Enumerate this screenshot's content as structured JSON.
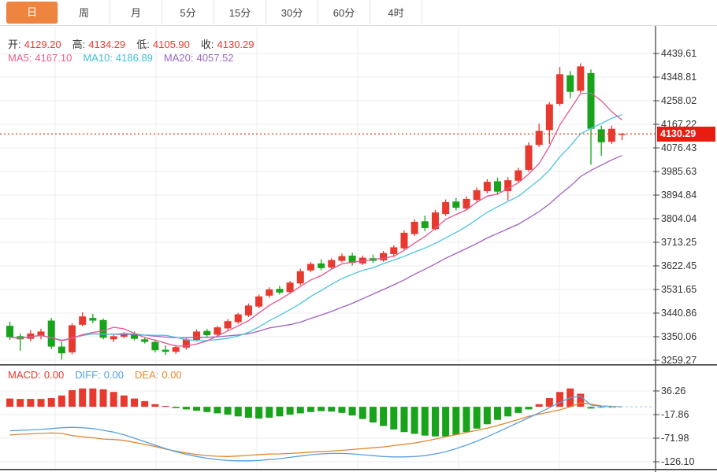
{
  "tabs": {
    "items": [
      {
        "id": "day",
        "label": "日",
        "active": true
      },
      {
        "id": "week",
        "label": "周",
        "active": false
      },
      {
        "id": "month",
        "label": "月",
        "active": false
      },
      {
        "id": "5min",
        "label": "5分",
        "active": false
      },
      {
        "id": "15min",
        "label": "15分",
        "active": false
      },
      {
        "id": "30min",
        "label": "30分",
        "active": false
      },
      {
        "id": "60min",
        "label": "60分",
        "active": false
      },
      {
        "id": "4hour",
        "label": "4时",
        "active": false
      }
    ]
  },
  "info": {
    "open_label": "开:",
    "open": "4129.20",
    "high_label": "高:",
    "high": "4134.29",
    "low_label": "低:",
    "low": "4105.90",
    "close_label": "收:",
    "close": "4130.29",
    "ma5_label": "MA5:",
    "ma5": "4167.10",
    "ma10_label": "MA10:",
    "ma10": "4186.89",
    "ma20_label": "MA20:",
    "ma20": "4057.52"
  },
  "macd_info": {
    "macd_label": "MACD:",
    "macd": "0.00",
    "diff_label": "DIFF:",
    "diff": "0.00",
    "dea_label": "DEA:",
    "dea": "0.00"
  },
  "price_tag": "4130.29",
  "colors": {
    "up": "#e8392f",
    "down": "#18a31a",
    "ma5": "#e8548f",
    "ma10": "#4cc3dc",
    "ma20": "#a05fc0",
    "diff_line": "#5aa0e0",
    "dea_line": "#e08830",
    "grid": "#ededf2",
    "axis": "#555555",
    "tick_text": "#333333",
    "price_line": "#e2502a",
    "tag_bg": "#e91c10",
    "tab_active": "#ed8440",
    "zero_ext": "#a5d5e8"
  },
  "chart_data": [
    {
      "type": "candlestick",
      "panel": "price",
      "ylim": [
        3259.27,
        4439.61
      ],
      "y_ticks": [
        4439.61,
        4348.81,
        4258.02,
        4167.22,
        4076.43,
        3985.63,
        3894.84,
        3804.04,
        3713.25,
        3622.45,
        3531.65,
        3440.86,
        3350.06,
        3259.27
      ],
      "last_price": 4130.29,
      "ma_periods": [
        5,
        10,
        20
      ],
      "candles_ohlc": [
        [
          3392,
          3408,
          3338,
          3348
        ],
        [
          3352,
          3362,
          3296,
          3340
        ],
        [
          3342,
          3376,
          3332,
          3362
        ],
        [
          3352,
          3380,
          3340,
          3370
        ],
        [
          3412,
          3422,
          3302,
          3312
        ],
        [
          3312,
          3330,
          3262,
          3286
        ],
        [
          3290,
          3402,
          3282,
          3394
        ],
        [
          3396,
          3444,
          3390,
          3428
        ],
        [
          3422,
          3438,
          3402,
          3412
        ],
        [
          3414,
          3420,
          3340,
          3346
        ],
        [
          3340,
          3356,
          3330,
          3352
        ],
        [
          3350,
          3368,
          3344,
          3364
        ],
        [
          3362,
          3370,
          3336,
          3342
        ],
        [
          3340,
          3348,
          3324,
          3330
        ],
        [
          3330,
          3336,
          3290,
          3298
        ],
        [
          3300,
          3316,
          3280,
          3292
        ],
        [
          3292,
          3318,
          3284,
          3310
        ],
        [
          3308,
          3346,
          3300,
          3340
        ],
        [
          3338,
          3378,
          3332,
          3370
        ],
        [
          3372,
          3380,
          3348,
          3356
        ],
        [
          3358,
          3392,
          3352,
          3386
        ],
        [
          3382,
          3418,
          3376,
          3410
        ],
        [
          3406,
          3442,
          3400,
          3436
        ],
        [
          3432,
          3478,
          3426,
          3470
        ],
        [
          3466,
          3512,
          3460,
          3505
        ],
        [
          3508,
          3540,
          3500,
          3532
        ],
        [
          3534,
          3546,
          3512,
          3520
        ],
        [
          3522,
          3565,
          3515,
          3558
        ],
        [
          3555,
          3612,
          3548,
          3602
        ],
        [
          3605,
          3638,
          3598,
          3630
        ],
        [
          3632,
          3648,
          3606,
          3614
        ],
        [
          3616,
          3652,
          3610,
          3645
        ],
        [
          3642,
          3670,
          3636,
          3660
        ],
        [
          3662,
          3674,
          3624,
          3634
        ],
        [
          3632,
          3662,
          3626,
          3654
        ],
        [
          3652,
          3666,
          3634,
          3642
        ],
        [
          3644,
          3680,
          3638,
          3672
        ],
        [
          3668,
          3702,
          3660,
          3694
        ],
        [
          3690,
          3760,
          3684,
          3750
        ],
        [
          3745,
          3802,
          3738,
          3792
        ],
        [
          3794,
          3816,
          3756,
          3768
        ],
        [
          3764,
          3838,
          3758,
          3828
        ],
        [
          3822,
          3878,
          3815,
          3868
        ],
        [
          3870,
          3884,
          3836,
          3846
        ],
        [
          3843,
          3890,
          3836,
          3880
        ],
        [
          3876,
          3924,
          3870,
          3914
        ],
        [
          3910,
          3956,
          3902,
          3946
        ],
        [
          3948,
          3962,
          3896,
          3908
        ],
        [
          3910,
          3964,
          3874,
          3952
        ],
        [
          3950,
          4000,
          3942,
          3990
        ],
        [
          3992,
          4098,
          3985,
          4086
        ],
        [
          4088,
          4170,
          4080,
          4142
        ],
        [
          4145,
          4252,
          4092,
          4244
        ],
        [
          4246,
          4388,
          4238,
          4360
        ],
        [
          4356,
          4372,
          4268,
          4292
        ],
        [
          4296,
          4402,
          4288,
          4390
        ],
        [
          4364,
          4378,
          4012,
          4150
        ],
        [
          4148,
          4162,
          4046,
          4098
        ],
        [
          4100,
          4162,
          4092,
          4150
        ],
        [
          4129.2,
          4134.29,
          4105.9,
          4130.29
        ]
      ]
    },
    {
      "type": "bar",
      "panel": "macd",
      "y_ticks": [
        36.26,
        -17.86,
        -71.98,
        -126.1
      ],
      "hist": [
        19,
        18,
        18,
        18,
        20,
        26,
        38,
        42,
        42,
        40,
        34,
        26,
        19,
        13,
        6,
        2,
        -3,
        -6,
        -9,
        -12,
        -15,
        -18,
        -22,
        -25,
        -27,
        -25,
        -22,
        -18,
        -15,
        -12,
        -10,
        -11,
        -14,
        -20,
        -28,
        -36,
        -44,
        -52,
        -58,
        -62,
        -66,
        -68,
        -68,
        -64,
        -58,
        -50,
        -40,
        -30,
        -22,
        -14,
        -6,
        6,
        20,
        34,
        42,
        30,
        -4,
        -2,
        -1,
        0
      ],
      "diff": [
        -55,
        -54,
        -53,
        -52,
        -50,
        -48,
        -47,
        -48,
        -50,
        -54,
        -58,
        -64,
        -72,
        -80,
        -88,
        -96,
        -103,
        -109,
        -114,
        -118,
        -121,
        -123,
        -124,
        -124,
        -123,
        -121,
        -119,
        -116,
        -113,
        -110,
        -108,
        -107,
        -107,
        -108,
        -110,
        -112,
        -114,
        -115,
        -115,
        -114,
        -112,
        -108,
        -103,
        -96,
        -88,
        -79,
        -69,
        -58,
        -47,
        -36,
        -25,
        -14,
        -2,
        10,
        21,
        24,
        4,
        1,
        0.5,
        0
      ],
      "dea": [
        -64.5,
        -63,
        -62,
        -61,
        -60,
        -61,
        -66,
        -69,
        -71,
        -74,
        -75,
        -77,
        -81.5,
        -86.5,
        -91,
        -97,
        -101.5,
        -106,
        -109.5,
        -112,
        -113.5,
        -114,
        -113,
        -111.5,
        -109.5,
        -108.5,
        -108,
        -107,
        -105.5,
        -104,
        -103,
        -101.5,
        -100,
        -98,
        -96,
        -94,
        -92,
        -89,
        -86,
        -83,
        -79,
        -74,
        -69,
        -64,
        -59,
        -54,
        -49,
        -43,
        -36,
        -29,
        -22,
        -17,
        -12,
        -7,
        0,
        9,
        6,
        2,
        1,
        0
      ]
    }
  ]
}
